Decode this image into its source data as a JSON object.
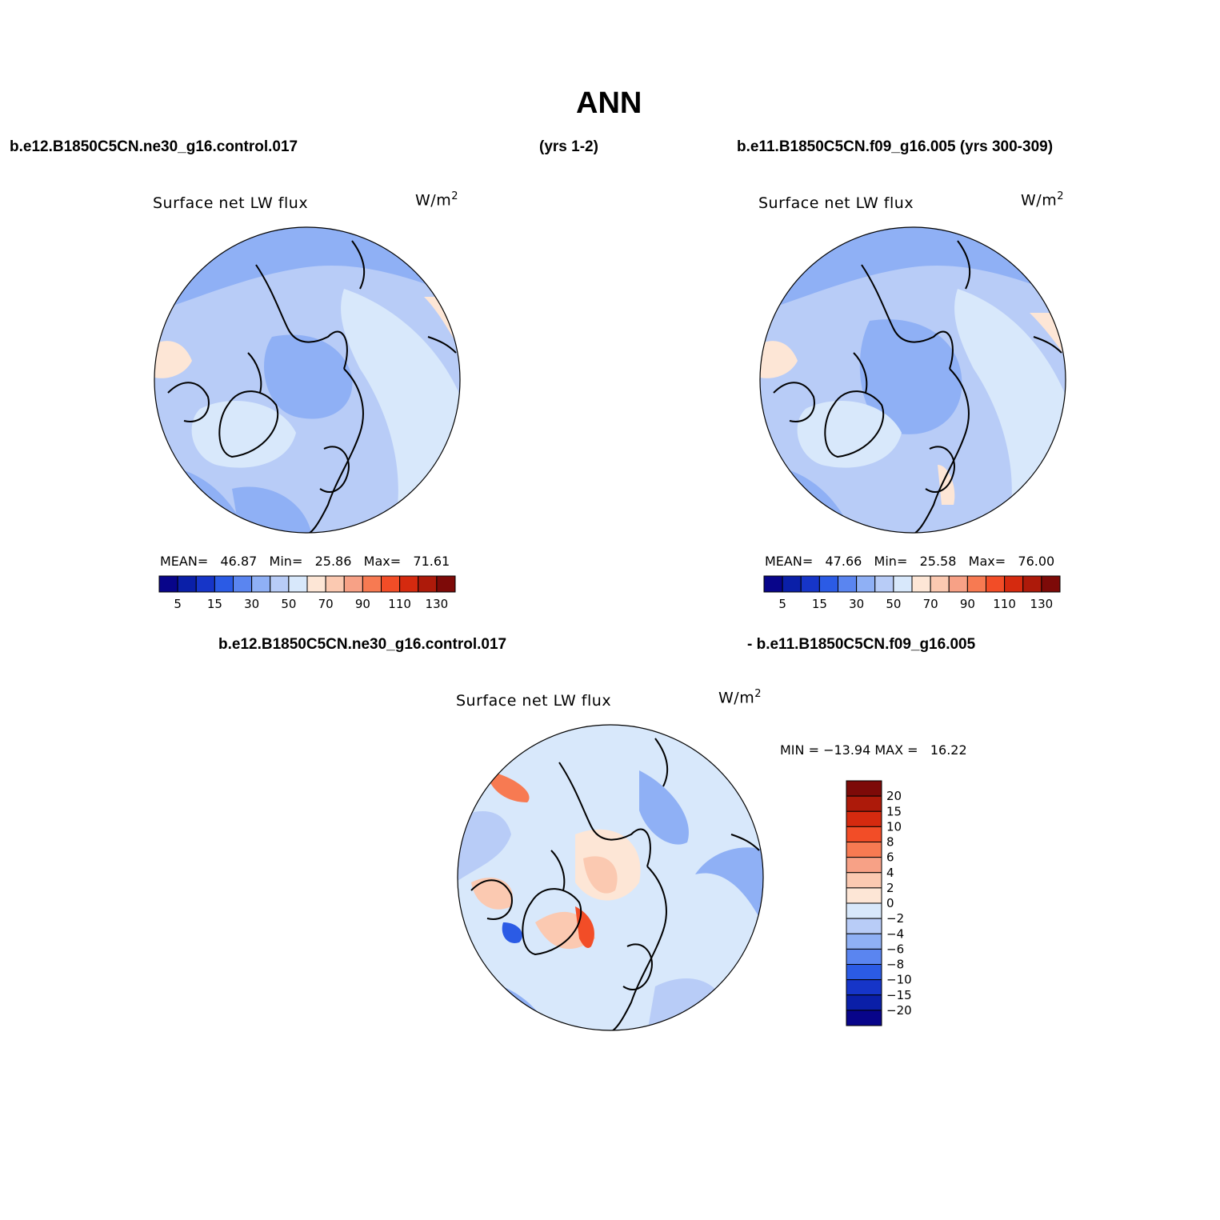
{
  "page": {
    "title": "ANN"
  },
  "header": {
    "case1": "b.e12.B1850C5CN.ne30_g16.control.017",
    "case1_years": "(yrs 1-2)",
    "case2": "b.e11.B1850C5CN.f09_g16.005 (yrs 300-309)",
    "diff_left": "b.e12.B1850C5CN.ne30_g16.control.017",
    "diff_right": "- b.e11.B1850C5CN.f09_g16.005"
  },
  "panels": [
    {
      "variable": "Surface net LW flux",
      "units": "W/m",
      "units_sup": "2",
      "stats_text": "MEAN=   46.87   Min=   25.86   Max=   71.61"
    },
    {
      "variable": "Surface net LW flux",
      "units": "W/m",
      "units_sup": "2",
      "stats_text": "MEAN=   47.66   Min=   25.58   Max=   76.00"
    },
    {
      "variable": "Surface net LW flux",
      "units": "W/m",
      "units_sup": "2",
      "stats_text": "MIN = −13.94 MAX =   16.22"
    }
  ],
  "colorbar_abs": {
    "colors": [
      "#08058a",
      "#0a1fa8",
      "#1635c8",
      "#2b5be5",
      "#5a85f0",
      "#8fb0f5",
      "#b8ccf7",
      "#d8e8fb",
      "#fde6d6",
      "#fbc9b1",
      "#f7a186",
      "#f77a52",
      "#f24d27",
      "#d52a0f",
      "#ad1a0a",
      "#7d0a08"
    ],
    "tick_labels": [
      "5",
      "15",
      "30",
      "50",
      "70",
      "90",
      "110",
      "130"
    ]
  },
  "colorbar_diff": {
    "colors": [
      "#7d0a08",
      "#ad1a0a",
      "#d52a0f",
      "#f24d27",
      "#f77a52",
      "#f7a186",
      "#fbc9b1",
      "#fde6d6",
      "#d8e8fb",
      "#b8ccf7",
      "#8fb0f5",
      "#5a85f0",
      "#2b5be5",
      "#1635c8",
      "#0a1fa8",
      "#08058a"
    ],
    "tick_labels": [
      "20",
      "15",
      "10",
      "8",
      "6",
      "4",
      "2",
      "0",
      "−2",
      "−4",
      "−6",
      "−8",
      "−10",
      "−15",
      "−20"
    ]
  },
  "chart_data": {
    "type": "heatmap",
    "projection": "north polar stereographic",
    "maps": [
      {
        "variable": "Surface net LW flux",
        "units": "W/m2",
        "mean": 46.87,
        "min": 25.86,
        "max": 71.61
      },
      {
        "variable": "Surface net LW flux",
        "units": "W/m2",
        "mean": 47.66,
        "min": 25.58,
        "max": 76.0
      },
      {
        "variable": "Surface net LW flux",
        "units": "W/m2",
        "min": -13.94,
        "max": 16.22
      }
    ],
    "levels_abs": [
      5,
      10,
      15,
      20,
      30,
      40,
      50,
      60,
      70,
      80,
      90,
      100,
      110,
      120,
      130
    ],
    "levels_diff": [
      20,
      15,
      10,
      8,
      6,
      4,
      2,
      0,
      -2,
      -4,
      -6,
      -8,
      -10,
      -15,
      -20
    ]
  }
}
